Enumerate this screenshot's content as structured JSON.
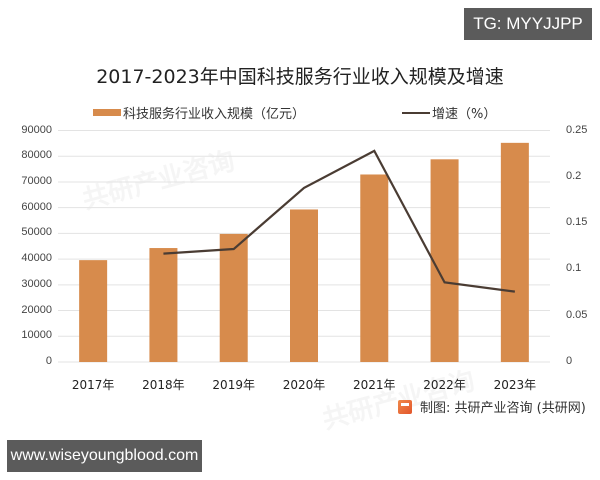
{
  "overlay": {
    "top_badge": "TG: MYYJJPP",
    "bottom_badge": "www.wiseyoungblood.com"
  },
  "source_note": "制图: 共研产业咨询 (共研网)",
  "colors": {
    "bar": "#D78B4C",
    "line": "#4A3C33",
    "grid": "#E3E3E3",
    "badge_bg": "#5B5B5B"
  },
  "chart_data": {
    "type": "bar+line",
    "title": "2017-2023年中国科技服务行业收入规模及增速",
    "categories": [
      "2017年",
      "2018年",
      "2019年",
      "2020年",
      "2021年",
      "2022年",
      "2023年"
    ],
    "series": [
      {
        "name": "科技服务行业收入规模（亿元）",
        "type": "bar",
        "axis": "left",
        "values": [
          39600,
          44300,
          49800,
          59300,
          72900,
          78800,
          85200
        ]
      },
      {
        "name": "增速（%）",
        "type": "line",
        "axis": "right",
        "values": [
          null,
          0.117,
          0.122,
          0.188,
          0.228,
          0.086,
          0.076
        ]
      }
    ],
    "left_axis": {
      "ylim": [
        0,
        90000
      ],
      "ticks": [
        "0",
        "10000",
        "20000",
        "30000",
        "40000",
        "50000",
        "60000",
        "70000",
        "80000",
        "90000"
      ]
    },
    "right_axis": {
      "ylim": [
        0,
        0.25
      ],
      "ticks": [
        "0",
        "0.05",
        "0.1",
        "0.15",
        "0.2",
        "0.25"
      ]
    },
    "legend": {
      "position": "top",
      "entries": [
        "科技服务行业收入规模（亿元）",
        "增速（%）"
      ]
    },
    "grid": true,
    "xlabel": "",
    "ylabel": ""
  }
}
